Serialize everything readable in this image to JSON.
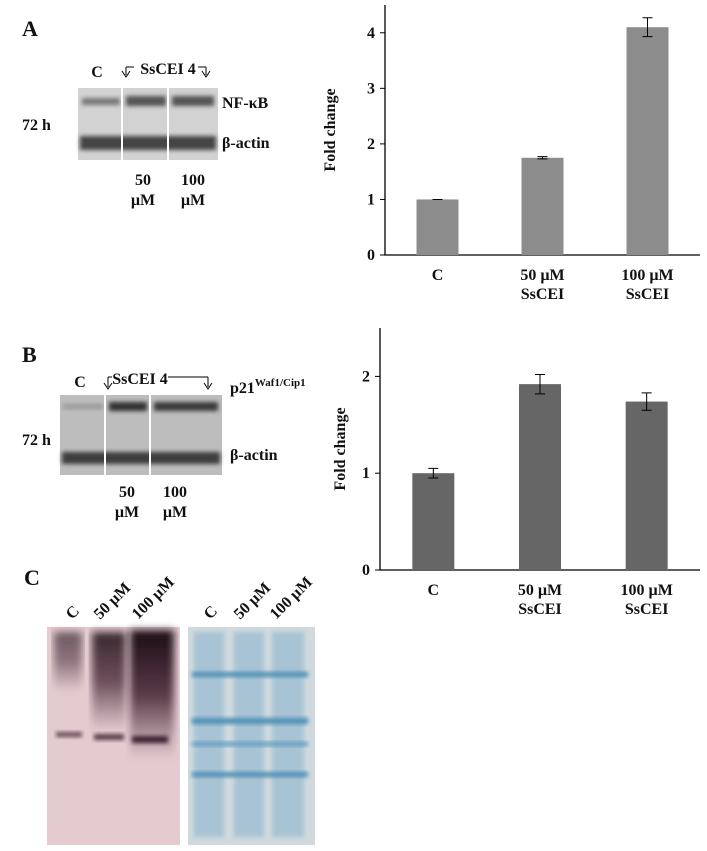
{
  "panels": {
    "A": {
      "label": "A",
      "lanes": [
        "C",
        "SsCEI 4"
      ],
      "bands": [
        "NF-κB",
        "β-actin"
      ],
      "time": "72 h",
      "doses": [
        [
          "50",
          "µM"
        ],
        [
          "100",
          "µM"
        ]
      ]
    },
    "B": {
      "label": "B",
      "lanes": [
        "C",
        "SsCEI 4"
      ],
      "bands": [
        {
          "text": "p21",
          "sup": "Waf1/Cip1"
        },
        "β-actin"
      ],
      "time": "72 h",
      "doses": [
        [
          "50",
          "µM"
        ],
        [
          "100",
          "µM"
        ]
      ]
    },
    "C": {
      "label": "C",
      "lanes": [
        "C",
        "50 µM",
        "100 µM"
      ]
    }
  },
  "chart_data": [
    {
      "type": "bar",
      "ylabel": "Fold change",
      "categories": [
        [
          "C"
        ],
        [
          "50 µM",
          "SsCEI"
        ],
        [
          "100 µM",
          "SsCEI"
        ]
      ],
      "values": [
        1.0,
        1.75,
        4.1
      ],
      "errors": [
        0.0,
        0.02,
        0.17
      ],
      "color": "#8c8c8c",
      "ylim": [
        0,
        4.5
      ],
      "yticks": [
        0,
        1,
        2,
        3,
        4
      ]
    },
    {
      "type": "bar",
      "ylabel": "Fold change",
      "categories": [
        [
          "C"
        ],
        [
          "50 µM",
          "SsCEI"
        ],
        [
          "100 µM",
          "SsCEI"
        ]
      ],
      "values": [
        1.0,
        1.92,
        1.74
      ],
      "errors": [
        0.05,
        0.1,
        0.09
      ],
      "color": "#666666",
      "ylim": [
        0,
        2.5
      ],
      "yticks": [
        0,
        1,
        2
      ]
    }
  ]
}
